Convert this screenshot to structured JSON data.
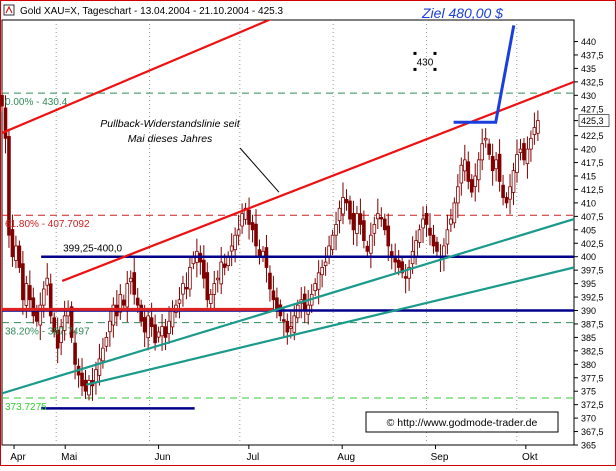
{
  "chart_data": {
    "type": "candlestick",
    "title": "Gold XAU=X, Tageschart - 13.04.2004 - 21.10.2004 - 425.3",
    "target_label": "Ziel 480,00 $",
    "ylim": [
      365,
      444
    ],
    "yticks": [
      {
        "value": 440,
        "label": "440"
      },
      {
        "value": 437.5,
        "label": "437,5"
      },
      {
        "value": 435,
        "label": "435"
      },
      {
        "value": 432.5,
        "label": "432,5"
      },
      {
        "value": 430,
        "label": "430"
      },
      {
        "value": 427.5,
        "label": "427,5"
      },
      {
        "value": 425.3,
        "label": "425,3",
        "highlight": true
      },
      {
        "value": 422.5,
        "label": "422,5"
      },
      {
        "value": 420,
        "label": "420"
      },
      {
        "value": 417.5,
        "label": "417,5"
      },
      {
        "value": 415,
        "label": "415"
      },
      {
        "value": 412.5,
        "label": "412,5"
      },
      {
        "value": 410,
        "label": "410"
      },
      {
        "value": 407.5,
        "label": "407,5"
      },
      {
        "value": 405,
        "label": "405"
      },
      {
        "value": 402.5,
        "label": "402,5"
      },
      {
        "value": 400,
        "label": "400"
      },
      {
        "value": 397.5,
        "label": "397,5"
      },
      {
        "value": 395,
        "label": "395"
      },
      {
        "value": 392.5,
        "label": "392,5"
      },
      {
        "value": 390,
        "label": "390"
      },
      {
        "value": 387.5,
        "label": "387,5"
      },
      {
        "value": 385,
        "label": "385"
      },
      {
        "value": 382.5,
        "label": "382,5"
      },
      {
        "value": 380,
        "label": "380"
      },
      {
        "value": 377.5,
        "label": "377,5"
      },
      {
        "value": 375,
        "label": "375"
      },
      {
        "value": 372.5,
        "label": "372,5"
      },
      {
        "value": 370,
        "label": "370"
      },
      {
        "value": 367.5,
        "label": "367,5"
      },
      {
        "value": 365,
        "label": "365"
      }
    ],
    "month_labels": [
      {
        "label": "Apr",
        "day": 4
      },
      {
        "label": "Mai",
        "day": 21
      },
      {
        "label": "Jun",
        "day": 52
      },
      {
        "label": "Jul",
        "day": 82
      },
      {
        "label": "Aug",
        "day": 113
      },
      {
        "label": "Sep",
        "day": 144
      },
      {
        "label": "Okt",
        "day": 174
      }
    ],
    "month_boundaries": [
      18,
      49,
      79,
      110,
      141,
      171
    ],
    "xlim": [
      0,
      190
    ],
    "horizontal_levels": [
      {
        "value": 430.4,
        "label": "0.00% - 430.4",
        "color": "#2e8b57",
        "style": "dashed"
      },
      {
        "value": 407.7092,
        "label": "61.80% - 407.7092",
        "color": "#cc2020",
        "style": "dashed"
      },
      {
        "value": 387.7497,
        "label": "38.20% - 387.7497",
        "color": "#2e8b57",
        "style": "dashed"
      },
      {
        "value": 373.7275,
        "label": "373.7275",
        "color": "#33cc33",
        "style": "dashed"
      }
    ],
    "support_resistance": [
      {
        "value": 400,
        "from_day": 13,
        "to_day": 190,
        "color": "#00008b",
        "label": "399,25-400,0"
      },
      {
        "value": 390,
        "from_day": 0,
        "to_day": 190,
        "color": "#00008b",
        "label": ""
      },
      {
        "value": 390.2,
        "from_day": 0,
        "to_day": 90,
        "color": "#dd2222",
        "label": ""
      },
      {
        "value": 371.8,
        "from_day": 13,
        "to_day": 64,
        "color": "#00008b",
        "label": ""
      }
    ],
    "trendlines": [
      {
        "from": [
          0,
          423
        ],
        "to": [
          190,
          468
        ],
        "color": "#ee1111"
      },
      {
        "from": [
          20,
          395.5
        ],
        "to": [
          190,
          432.5
        ],
        "color": "#ee1111"
      },
      {
        "from": [
          0,
          374.6
        ],
        "to": [
          190,
          407
        ],
        "color": "#1a9a8a"
      },
      {
        "from": [
          28,
          376.2
        ],
        "to": [
          190,
          398
        ],
        "color": "#1a9a8a"
      }
    ],
    "target_arrow": [
      [
        150,
        425
      ],
      [
        164,
        425
      ],
      [
        170,
        443
      ]
    ],
    "annotation": {
      "text": "Pullback-Widerstandslinie seit Mai dieses Jahres",
      "line1": "Pullback-Widerstandslinie seit",
      "line2": "Mai dieses Jahres",
      "pointer_to": [
        92,
        412
      ]
    },
    "marker_430": "430",
    "watermark": "© http://www.godmode-trader.de",
    "series": {
      "closes": [
        428,
        422,
        404,
        400,
        402,
        398,
        392,
        395,
        392,
        389,
        388,
        391,
        394,
        396,
        389,
        386,
        383,
        387,
        389,
        390,
        385,
        380,
        378,
        376,
        375,
        377,
        376,
        379,
        381,
        383,
        385,
        388,
        391,
        389,
        393,
        391,
        395,
        396,
        393,
        391,
        388,
        386,
        389,
        387,
        384,
        386,
        387,
        385,
        388,
        390,
        391,
        392,
        395,
        394,
        398,
        400,
        401,
        399,
        396,
        392,
        393,
        395,
        396,
        399,
        398,
        400,
        402,
        404,
        405,
        408,
        409,
        406,
        405,
        402,
        400,
        401,
        398,
        394,
        392,
        390,
        389,
        388,
        386,
        387,
        389,
        391,
        392,
        390,
        391,
        393,
        395,
        397,
        398,
        399,
        402,
        404,
        406,
        409,
        411,
        410,
        407,
        405,
        408,
        406,
        403,
        401,
        404,
        406,
        408,
        407,
        405,
        402,
        400,
        399,
        398,
        397,
        396,
        398,
        401,
        403,
        405,
        407,
        406,
        404,
        402,
        401,
        400,
        402,
        405,
        407,
        410,
        413,
        417,
        418,
        414,
        412,
        415,
        418,
        421,
        422,
        419,
        416,
        418,
        414,
        411,
        410,
        413,
        416,
        419,
        420,
        418,
        420,
        422,
        424,
        425.3
      ]
    }
  }
}
